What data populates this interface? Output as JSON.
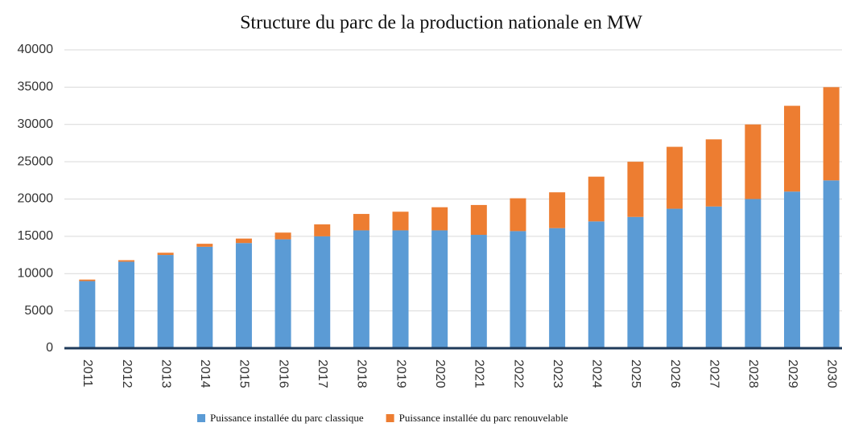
{
  "chart_data": {
    "type": "stacked-bar",
    "title": "Structure du parc de la production nationale en MW",
    "categories": [
      "2011",
      "2012",
      "2013",
      "2014",
      "2015",
      "2016",
      "2017",
      "2018",
      "2019",
      "2020",
      "2021",
      "2022",
      "2023",
      "2024",
      "2025",
      "2026",
      "2027",
      "2028",
      "2029",
      "2030"
    ],
    "series": [
      {
        "name": "Puissance installée du parc classique",
        "color": "#5b9bd5",
        "values": [
          9000,
          11600,
          12500,
          13600,
          14100,
          14600,
          15000,
          15800,
          15800,
          15800,
          15200,
          15700,
          16100,
          17000,
          17600,
          18700,
          19000,
          20000,
          21000,
          22500
        ]
      },
      {
        "name": "Puissance installée du parc renouvelable",
        "color": "#ed7d31",
        "values": [
          200,
          200,
          300,
          400,
          600,
          900,
          1600,
          2200,
          2500,
          3100,
          4000,
          4400,
          4800,
          6000,
          7400,
          8300,
          9000,
          10000,
          11500,
          12500
        ]
      }
    ],
    "ylim": [
      0,
      40000
    ],
    "yticks": [
      0,
      5000,
      10000,
      15000,
      20000,
      25000,
      30000,
      35000,
      40000
    ],
    "grid": true
  }
}
